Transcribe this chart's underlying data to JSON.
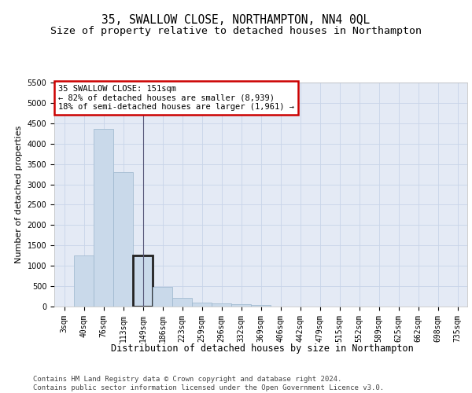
{
  "title": "35, SWALLOW CLOSE, NORTHAMPTON, NN4 0QL",
  "subtitle": "Size of property relative to detached houses in Northampton",
  "xlabel": "Distribution of detached houses by size in Northampton",
  "ylabel": "Number of detached properties",
  "categories": [
    "3sqm",
    "40sqm",
    "76sqm",
    "113sqm",
    "149sqm",
    "186sqm",
    "223sqm",
    "259sqm",
    "296sqm",
    "332sqm",
    "369sqm",
    "406sqm",
    "442sqm",
    "479sqm",
    "515sqm",
    "552sqm",
    "589sqm",
    "625sqm",
    "662sqm",
    "698sqm",
    "735sqm"
  ],
  "values": [
    0,
    1260,
    4360,
    3300,
    1260,
    490,
    210,
    100,
    80,
    55,
    45,
    0,
    0,
    0,
    0,
    0,
    0,
    0,
    0,
    0,
    0
  ],
  "highlight_index": 4,
  "bar_color": "#c9d9ea",
  "bar_edge_color": "#9bb5cc",
  "highlight_bar_edge_color": "#222222",
  "highlight_bar_edge_width": 2.0,
  "annotation_text": "35 SWALLOW CLOSE: 151sqm\n← 82% of detached houses are smaller (8,939)\n18% of semi-detached houses are larger (1,961) →",
  "annotation_box_color": "#ffffff",
  "annotation_box_edge_color": "#cc0000",
  "ylim": [
    0,
    5500
  ],
  "yticks": [
    0,
    500,
    1000,
    1500,
    2000,
    2500,
    3000,
    3500,
    4000,
    4500,
    5000,
    5500
  ],
  "grid_color": "#c8d4e8",
  "bg_color": "#e4eaf5",
  "footer_text": "Contains HM Land Registry data © Crown copyright and database right 2024.\nContains public sector information licensed under the Open Government Licence v3.0.",
  "title_fontsize": 10.5,
  "subtitle_fontsize": 9.5,
  "xlabel_fontsize": 8.5,
  "ylabel_fontsize": 8,
  "tick_fontsize": 7,
  "annotation_fontsize": 7.5,
  "footer_fontsize": 6.5
}
